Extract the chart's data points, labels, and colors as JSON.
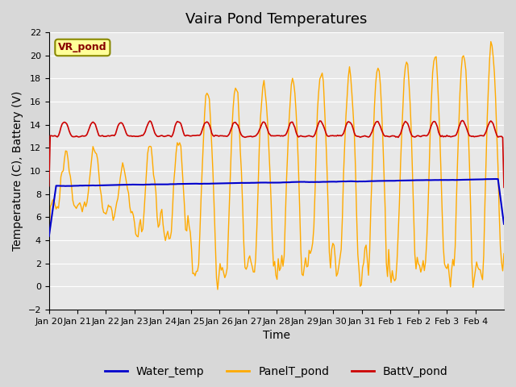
{
  "title": "Vaira Pond Temperatures",
  "xlabel": "Time",
  "ylabel": "Temperature (C), Battery (V)",
  "ylim": [
    -2,
    22
  ],
  "yticks": [
    -2,
    0,
    2,
    4,
    6,
    8,
    10,
    12,
    14,
    16,
    18,
    20,
    22
  ],
  "xtick_labels": [
    "Jan 20",
    "Jan 21",
    "Jan 22",
    "Jan 23",
    "Jan 24",
    "Jan 25",
    "Jan 26",
    "Jan 27",
    "Jan 28",
    "Jan 29",
    "Jan 30",
    "Jan 31",
    "Feb 1",
    "Feb 2",
    "Feb 3",
    "Feb 4"
  ],
  "water_temp_color": "#0000cc",
  "panel_temp_color": "#ffaa00",
  "batt_color": "#cc0000",
  "bg_color": "#e8e8e8",
  "fig_bg_color": "#d8d8d8",
  "annotation_text": "VR_pond",
  "annotation_bg": "#ffff99",
  "annotation_border": "#888800",
  "legend_items": [
    "Water_temp",
    "PanelT_pond",
    "BattV_pond"
  ],
  "title_fontsize": 13,
  "axis_fontsize": 10,
  "tick_fontsize": 8,
  "legend_fontsize": 10
}
